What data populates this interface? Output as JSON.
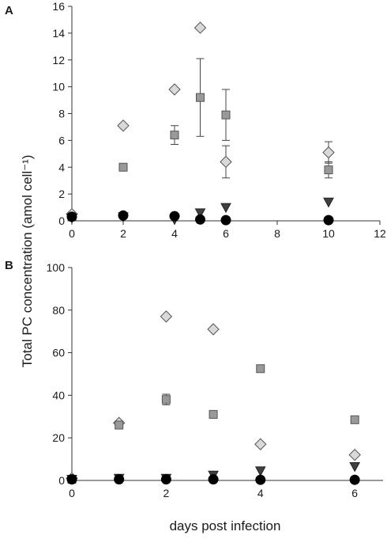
{
  "figure": {
    "ylabel": "Total PC concentration (amol cell⁻¹)",
    "xlabel": "days post infection"
  },
  "chart_data": [
    {
      "panel": "A",
      "type": "scatter",
      "xlim": [
        0,
        12
      ],
      "ylim": [
        0,
        16
      ],
      "xticks": [
        0,
        2,
        4,
        6,
        8,
        10,
        12
      ],
      "yticks": [
        0,
        2,
        4,
        6,
        8,
        10,
        12,
        14,
        16
      ],
      "grid": false,
      "series": [
        {
          "marker": "diamond",
          "color": "#d9d9d9",
          "edge": "#555555",
          "points": [
            {
              "x": 0,
              "y": 0.5
            },
            {
              "x": 2,
              "y": 7.1
            },
            {
              "x": 4,
              "y": 9.8
            },
            {
              "x": 5,
              "y": 14.4
            },
            {
              "x": 6,
              "y": 4.4,
              "err": 1.2
            },
            {
              "x": 10,
              "y": 5.1,
              "err": 0.8
            }
          ]
        },
        {
          "marker": "square",
          "color": "#999999",
          "edge": "#555555",
          "points": [
            {
              "x": 0,
              "y": 0.3
            },
            {
              "x": 2,
              "y": 4.0
            },
            {
              "x": 4,
              "y": 6.4,
              "err": 0.7
            },
            {
              "x": 5,
              "y": 9.2,
              "err": 2.9
            },
            {
              "x": 6,
              "y": 7.9,
              "err": 1.9
            },
            {
              "x": 10,
              "y": 3.8,
              "err": 0.6
            }
          ]
        },
        {
          "marker": "triangle-down",
          "color": "#404040",
          "edge": "#222222",
          "points": [
            {
              "x": 0,
              "y": 0.2
            },
            {
              "x": 2,
              "y": 0.3
            },
            {
              "x": 4,
              "y": 0.1
            },
            {
              "x": 5,
              "y": 0.6
            },
            {
              "x": 6,
              "y": 1.0
            },
            {
              "x": 10,
              "y": 1.4
            }
          ]
        },
        {
          "marker": "circle",
          "color": "#000000",
          "edge": "#000000",
          "points": [
            {
              "x": 0,
              "y": 0.3
            },
            {
              "x": 2,
              "y": 0.4
            },
            {
              "x": 4,
              "y": 0.35
            },
            {
              "x": 5,
              "y": 0.1
            },
            {
              "x": 6,
              "y": 0.05
            },
            {
              "x": 10,
              "y": 0.05
            }
          ]
        }
      ]
    },
    {
      "panel": "B",
      "type": "scatter",
      "xlim": [
        0,
        6.6
      ],
      "ylim": [
        0,
        100
      ],
      "xticks": [
        0,
        2,
        4,
        6
      ],
      "yticks": [
        0,
        20,
        40,
        60,
        80,
        100
      ],
      "grid": false,
      "series": [
        {
          "marker": "diamond",
          "color": "#d9d9d9",
          "edge": "#555555",
          "points": [
            {
              "x": 0,
              "y": 1
            },
            {
              "x": 1,
              "y": 27
            },
            {
              "x": 2,
              "y": 77
            },
            {
              "x": 3,
              "y": 71
            },
            {
              "x": 4,
              "y": 17
            },
            {
              "x": 6,
              "y": 12
            }
          ]
        },
        {
          "marker": "square",
          "color": "#999999",
          "edge": "#555555",
          "points": [
            {
              "x": 0,
              "y": 0.5
            },
            {
              "x": 1,
              "y": 26
            },
            {
              "x": 2,
              "y": 38,
              "err": 2.5
            },
            {
              "x": 3,
              "y": 31
            },
            {
              "x": 4,
              "y": 52.5
            },
            {
              "x": 6,
              "y": 28.5
            }
          ]
        },
        {
          "marker": "triangle-down",
          "color": "#404040",
          "edge": "#222222",
          "points": [
            {
              "x": 0,
              "y": 0.5
            },
            {
              "x": 1,
              "y": 1
            },
            {
              "x": 2,
              "y": 1
            },
            {
              "x": 3,
              "y": 2.5
            },
            {
              "x": 4,
              "y": 4.5
            },
            {
              "x": 6,
              "y": 6.5
            }
          ]
        },
        {
          "marker": "circle",
          "color": "#000000",
          "edge": "#000000",
          "points": [
            {
              "x": 0,
              "y": 0.5
            },
            {
              "x": 1,
              "y": 0.5
            },
            {
              "x": 2,
              "y": 0.5
            },
            {
              "x": 3,
              "y": 0.5
            },
            {
              "x": 4,
              "y": 0.3
            },
            {
              "x": 6,
              "y": 0.3
            }
          ]
        }
      ]
    }
  ]
}
